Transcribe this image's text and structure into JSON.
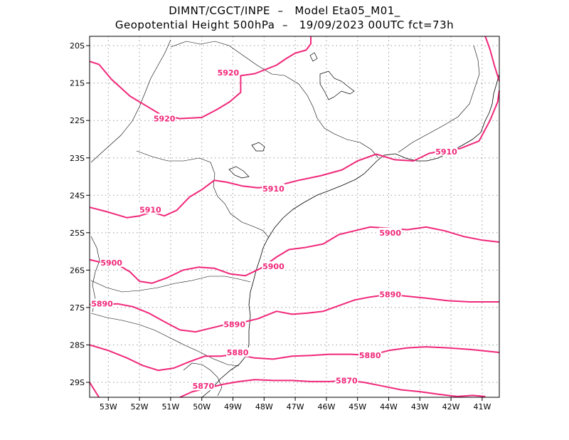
{
  "title": {
    "line1": "DIMNT/CGCT/INPE  –   Model Eta05_M01_",
    "line2": "Geopotential Height 500hPa  –   19/09/2023 00UTC fct=73h"
  },
  "axes": {
    "lon_labels": [
      "53W",
      "52W",
      "51W",
      "50W",
      "49W",
      "48W",
      "47W",
      "46W",
      "45W",
      "44W",
      "43W",
      "42W",
      "41W"
    ],
    "lat_labels": [
      "20S",
      "21S",
      "22S",
      "23S",
      "24S",
      "25S",
      "26S",
      "27S",
      "28S",
      "29S"
    ]
  },
  "colors": {
    "contour": "#f0287a",
    "coast": "#000000",
    "grid": "#9a9a9a"
  },
  "chart_data": {
    "type": "contour-map",
    "variable": "Geopotential Height 500hPa",
    "xlim": [
      -53.6,
      -40.45
    ],
    "ylim": [
      -29.4,
      -19.75
    ],
    "grid": true,
    "contours": [
      {
        "level": 5920,
        "labels": [
          {
            "text": "5920",
            "lon": -49.15,
            "lat": -20.72
          },
          {
            "text": "5920",
            "lon": -51.2,
            "lat": -21.95
          }
        ],
        "segments": [
          [
            [
              -53.6,
              -20.42
            ],
            [
              -53.3,
              -20.5
            ],
            [
              -52.9,
              -20.9
            ],
            [
              -52.3,
              -21.35
            ],
            [
              -51.8,
              -21.6
            ],
            [
              -51.3,
              -21.85
            ],
            [
              -50.7,
              -21.95
            ],
            [
              -50.0,
              -21.92
            ],
            [
              -49.5,
              -21.7
            ],
            [
              -49.1,
              -21.5
            ],
            [
              -48.75,
              -21.25
            ],
            [
              -48.75,
              -20.8
            ],
            [
              -48.3,
              -20.75
            ],
            [
              -47.6,
              -20.52
            ],
            [
              -47.3,
              -20.35
            ],
            [
              -47.0,
              -20.2
            ],
            [
              -46.65,
              -20.12
            ],
            [
              -46.5,
              -19.95
            ],
            [
              -46.5,
              -19.75
            ]
          ],
          [
            [
              -40.9,
              -19.75
            ],
            [
              -40.75,
              -20.1
            ],
            [
              -40.6,
              -20.55
            ],
            [
              -40.45,
              -20.95
            ]
          ]
        ]
      },
      {
        "level": 5910,
        "labels": [
          {
            "text": "5910",
            "lon": -51.65,
            "lat": -24.38
          },
          {
            "text": "5910",
            "lon": -47.7,
            "lat": -23.82
          },
          {
            "text": "5910",
            "lon": -42.15,
            "lat": -22.83
          }
        ],
        "segments": [
          [
            [
              -53.6,
              -24.32
            ],
            [
              -53.0,
              -24.45
            ],
            [
              -52.4,
              -24.6
            ],
            [
              -52.0,
              -24.55
            ],
            [
              -51.6,
              -24.45
            ],
            [
              -51.2,
              -24.55
            ],
            [
              -50.8,
              -24.4
            ],
            [
              -50.4,
              -24.05
            ],
            [
              -50.0,
              -23.85
            ],
            [
              -49.6,
              -23.6
            ],
            [
              -49.2,
              -23.65
            ],
            [
              -48.7,
              -23.75
            ],
            [
              -48.2,
              -23.8
            ],
            [
              -47.6,
              -23.75
            ],
            [
              -46.9,
              -23.6
            ],
            [
              -46.2,
              -23.48
            ],
            [
              -45.5,
              -23.32
            ],
            [
              -45.0,
              -23.08
            ],
            [
              -44.4,
              -22.9
            ],
            [
              -43.8,
              -23.05
            ],
            [
              -43.2,
              -23.08
            ],
            [
              -42.7,
              -22.88
            ],
            [
              -42.2,
              -22.8
            ],
            [
              -41.7,
              -22.75
            ],
            [
              -41.1,
              -22.55
            ],
            [
              -40.75,
              -22.0
            ],
            [
              -40.5,
              -21.5
            ],
            [
              -40.45,
              -21.2
            ]
          ]
        ]
      },
      {
        "level": 5900,
        "labels": [
          {
            "text": "5900",
            "lon": -52.9,
            "lat": -25.8
          },
          {
            "text": "5900",
            "lon": -47.7,
            "lat": -25.9
          },
          {
            "text": "5900",
            "lon": -43.95,
            "lat": -25.0
          }
        ],
        "segments": [
          [
            [
              -53.6,
              -25.72
            ],
            [
              -53.2,
              -25.8
            ],
            [
              -52.7,
              -25.85
            ],
            [
              -52.3,
              -26.05
            ],
            [
              -52.0,
              -26.3
            ],
            [
              -51.6,
              -26.35
            ],
            [
              -51.1,
              -26.2
            ],
            [
              -50.6,
              -26.0
            ],
            [
              -50.1,
              -25.92
            ],
            [
              -49.6,
              -25.95
            ],
            [
              -49.1,
              -26.1
            ],
            [
              -48.6,
              -26.15
            ],
            [
              -48.1,
              -25.95
            ],
            [
              -47.6,
              -25.65
            ],
            [
              -47.2,
              -25.45
            ],
            [
              -46.7,
              -25.4
            ],
            [
              -46.1,
              -25.3
            ],
            [
              -45.6,
              -25.05
            ],
            [
              -45.1,
              -24.95
            ],
            [
              -44.6,
              -24.85
            ],
            [
              -44.0,
              -24.88
            ],
            [
              -43.4,
              -24.92
            ],
            [
              -42.8,
              -24.85
            ],
            [
              -42.2,
              -24.95
            ],
            [
              -41.6,
              -25.1
            ],
            [
              -41.0,
              -25.2
            ],
            [
              -40.45,
              -25.25
            ]
          ]
        ]
      },
      {
        "level": 5890,
        "labels": [
          {
            "text": "5890",
            "lon": -53.2,
            "lat": -26.9
          },
          {
            "text": "5890",
            "lon": -48.95,
            "lat": -27.45
          },
          {
            "text": "5890",
            "lon": -43.95,
            "lat": -26.65
          }
        ],
        "segments": [
          [
            [
              -53.6,
              -26.92
            ],
            [
              -53.2,
              -26.92
            ],
            [
              -52.7,
              -26.9
            ],
            [
              -52.2,
              -26.98
            ],
            [
              -51.7,
              -27.15
            ],
            [
              -51.2,
              -27.38
            ],
            [
              -50.7,
              -27.6
            ],
            [
              -50.2,
              -27.65
            ],
            [
              -49.7,
              -27.55
            ],
            [
              -49.2,
              -27.45
            ],
            [
              -48.7,
              -27.4
            ],
            [
              -48.2,
              -27.3
            ],
            [
              -47.6,
              -27.1
            ],
            [
              -47.1,
              -27.18
            ],
            [
              -46.6,
              -27.15
            ],
            [
              -46.1,
              -27.1
            ],
            [
              -45.6,
              -26.95
            ],
            [
              -45.1,
              -26.8
            ],
            [
              -44.6,
              -26.72
            ],
            [
              -44.0,
              -26.65
            ],
            [
              -43.4,
              -26.7
            ],
            [
              -42.8,
              -26.75
            ],
            [
              -42.1,
              -26.82
            ],
            [
              -41.4,
              -26.85
            ],
            [
              -40.45,
              -26.85
            ]
          ]
        ]
      },
      {
        "level": 5880,
        "labels": [
          {
            "text": "5880",
            "lon": -48.85,
            "lat": -28.2
          },
          {
            "text": "5880",
            "lon": -44.6,
            "lat": -28.28
          }
        ],
        "segments": [
          [
            [
              -53.6,
              -28.0
            ],
            [
              -53.0,
              -28.15
            ],
            [
              -52.4,
              -28.35
            ],
            [
              -51.9,
              -28.55
            ],
            [
              -51.4,
              -28.68
            ],
            [
              -50.9,
              -28.62
            ],
            [
              -50.4,
              -28.45
            ],
            [
              -49.9,
              -28.3
            ],
            [
              -49.4,
              -28.3
            ],
            [
              -48.9,
              -28.25
            ],
            [
              -48.3,
              -28.35
            ],
            [
              -47.7,
              -28.38
            ],
            [
              -47.1,
              -28.3
            ],
            [
              -46.5,
              -28.28
            ],
            [
              -45.9,
              -28.25
            ],
            [
              -45.2,
              -28.25
            ],
            [
              -44.6,
              -28.28
            ],
            [
              -44.0,
              -28.15
            ],
            [
              -43.4,
              -28.08
            ],
            [
              -42.8,
              -28.05
            ],
            [
              -42.1,
              -28.08
            ],
            [
              -41.4,
              -28.12
            ],
            [
              -40.45,
              -28.2
            ]
          ]
        ]
      },
      {
        "level": 5870,
        "labels": [
          {
            "text": "5870",
            "lon": -49.95,
            "lat": -29.1
          },
          {
            "text": "5870",
            "lon": -45.35,
            "lat": -28.95
          }
        ],
        "segments": [
          [
            [
              -53.6,
              -29.0
            ],
            [
              -53.45,
              -29.2
            ],
            [
              -53.3,
              -29.4
            ]
          ],
          [
            [
              -50.7,
              -29.4
            ],
            [
              -50.3,
              -29.25
            ],
            [
              -49.8,
              -29.15
            ],
            [
              -49.3,
              -29.05
            ],
            [
              -48.8,
              -28.98
            ],
            [
              -48.3,
              -28.93
            ],
            [
              -47.7,
              -28.95
            ],
            [
              -47.1,
              -28.95
            ],
            [
              -46.5,
              -28.98
            ],
            [
              -45.9,
              -28.98
            ],
            [
              -45.3,
              -28.95
            ],
            [
              -44.8,
              -29.0
            ],
            [
              -44.2,
              -29.1
            ],
            [
              -43.6,
              -29.2
            ],
            [
              -43.0,
              -29.25
            ],
            [
              -42.4,
              -29.32
            ],
            [
              -41.8,
              -29.38
            ],
            [
              -41.3,
              -29.35
            ],
            [
              -40.9,
              -29.38
            ]
          ]
        ]
      }
    ]
  }
}
